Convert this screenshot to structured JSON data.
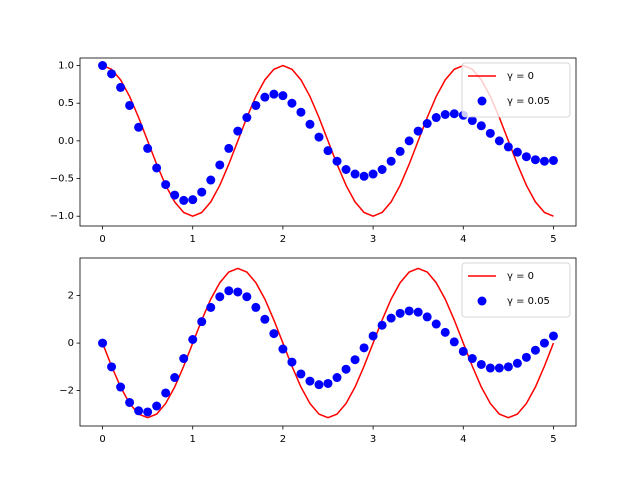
{
  "chart_data": [
    {
      "type": "line",
      "x": [
        0,
        0.1,
        0.2,
        0.3,
        0.4,
        0.5,
        0.6,
        0.7,
        0.8,
        0.9,
        1,
        1.1,
        1.2,
        1.3,
        1.4,
        1.5,
        1.6,
        1.7,
        1.8,
        1.9,
        2,
        2.1,
        2.2,
        2.3,
        2.4,
        2.5,
        2.6,
        2.7,
        2.8,
        2.9,
        3,
        3.1,
        3.2,
        3.3,
        3.4,
        3.5,
        3.6,
        3.7,
        3.8,
        3.9,
        4,
        4.1,
        4.2,
        4.3,
        4.4,
        4.5,
        4.6,
        4.7,
        4.8,
        4.9,
        5
      ],
      "series": [
        {
          "name": "γ = 0",
          "color": "#ff0000",
          "mode": "line",
          "values": [
            1,
            0.95,
            0.81,
            0.59,
            0.31,
            0,
            -0.31,
            -0.59,
            -0.81,
            -0.95,
            -1,
            -0.95,
            -0.81,
            -0.59,
            -0.31,
            0,
            0.31,
            0.59,
            0.81,
            0.95,
            1,
            0.95,
            0.81,
            0.59,
            0.31,
            0,
            -0.31,
            -0.59,
            -0.81,
            -0.95,
            -1,
            -0.95,
            -0.81,
            -0.59,
            -0.31,
            0,
            0.31,
            0.59,
            0.81,
            0.95,
            1,
            0.95,
            0.81,
            0.59,
            0.31,
            0,
            -0.31,
            -0.59,
            -0.81,
            -0.95,
            -1
          ]
        },
        {
          "name": "γ = 0.05",
          "color": "#0000ff",
          "mode": "markers",
          "values": [
            1.0,
            0.89,
            0.71,
            0.47,
            0.18,
            -0.1,
            -0.36,
            -0.58,
            -0.72,
            -0.79,
            -0.78,
            -0.68,
            -0.52,
            -0.32,
            -0.1,
            0.13,
            0.31,
            0.47,
            0.58,
            0.62,
            0.6,
            0.5,
            0.38,
            0.22,
            0.05,
            -0.13,
            -0.27,
            -0.38,
            -0.44,
            -0.47,
            -0.44,
            -0.38,
            -0.27,
            -0.14,
            0.0,
            0.13,
            0.23,
            0.31,
            0.35,
            0.36,
            0.34,
            0.27,
            0.2,
            0.1,
            0.0,
            -0.08,
            -0.15,
            -0.21,
            -0.25,
            -0.27,
            -0.26
          ]
        }
      ],
      "xlim": [
        -0.25,
        5.25
      ],
      "xticks": [
        0,
        1,
        2,
        3,
        4,
        5
      ],
      "ylim": [
        -1.13,
        1.1
      ],
      "yticks": [
        {
          "value": -1,
          "label": "−1.0"
        },
        {
          "value": -0.5,
          "label": "−0.5"
        },
        {
          "value": 0,
          "label": "0.0"
        },
        {
          "value": 0.5,
          "label": "0.5"
        },
        {
          "value": 1,
          "label": "1.0"
        }
      ],
      "legend": "upper right"
    },
    {
      "type": "line",
      "x": [
        0,
        0.1,
        0.2,
        0.3,
        0.4,
        0.5,
        0.6,
        0.7,
        0.8,
        0.9,
        1,
        1.1,
        1.2,
        1.3,
        1.4,
        1.5,
        1.6,
        1.7,
        1.8,
        1.9,
        2,
        2.1,
        2.2,
        2.3,
        2.4,
        2.5,
        2.6,
        2.7,
        2.8,
        2.9,
        3,
        3.1,
        3.2,
        3.3,
        3.4,
        3.5,
        3.6,
        3.7,
        3.8,
        3.9,
        4,
        4.1,
        4.2,
        4.3,
        4.4,
        4.5,
        4.6,
        4.7,
        4.8,
        4.9,
        5
      ],
      "series": [
        {
          "name": "γ = 0",
          "color": "#ff0000",
          "mode": "line",
          "values": [
            0,
            -0.97,
            -1.85,
            -2.54,
            -2.99,
            -3.14,
            -2.99,
            -2.54,
            -1.85,
            -0.97,
            0,
            0.97,
            1.85,
            2.54,
            2.99,
            3.14,
            2.99,
            2.54,
            1.85,
            0.97,
            0,
            -0.97,
            -1.85,
            -2.54,
            -2.99,
            -3.14,
            -2.99,
            -2.54,
            -1.85,
            -0.97,
            0,
            0.97,
            1.85,
            2.54,
            2.99,
            3.14,
            2.99,
            2.54,
            1.85,
            0.97,
            0,
            -0.97,
            -1.85,
            -2.54,
            -2.99,
            -3.14,
            -2.99,
            -2.54,
            -1.85,
            -0.97,
            0
          ]
        },
        {
          "name": "γ = 0.05",
          "color": "#0000ff",
          "mode": "markers",
          "values": [
            0,
            -1.0,
            -1.85,
            -2.5,
            -2.85,
            -2.9,
            -2.65,
            -2.1,
            -1.45,
            -0.65,
            0.15,
            0.9,
            1.5,
            1.95,
            2.2,
            2.15,
            1.95,
            1.5,
            1.0,
            0.4,
            -0.25,
            -0.8,
            -1.3,
            -1.6,
            -1.75,
            -1.7,
            -1.45,
            -1.1,
            -0.7,
            -0.2,
            0.3,
            0.75,
            1.05,
            1.25,
            1.35,
            1.3,
            1.1,
            0.8,
            0.45,
            0.05,
            -0.35,
            -0.65,
            -0.9,
            -1.05,
            -1.05,
            -1.0,
            -0.85,
            -0.6,
            -0.3,
            0.0,
            0.3
          ]
        }
      ],
      "xlim": [
        -0.25,
        5.25
      ],
      "xticks": [
        0,
        1,
        2,
        3,
        4,
        5
      ],
      "ylim": [
        -3.49,
        3.58
      ],
      "yticks": [
        {
          "value": -2,
          "label": "−2"
        },
        0,
        2
      ],
      "legend": "upper right"
    }
  ]
}
